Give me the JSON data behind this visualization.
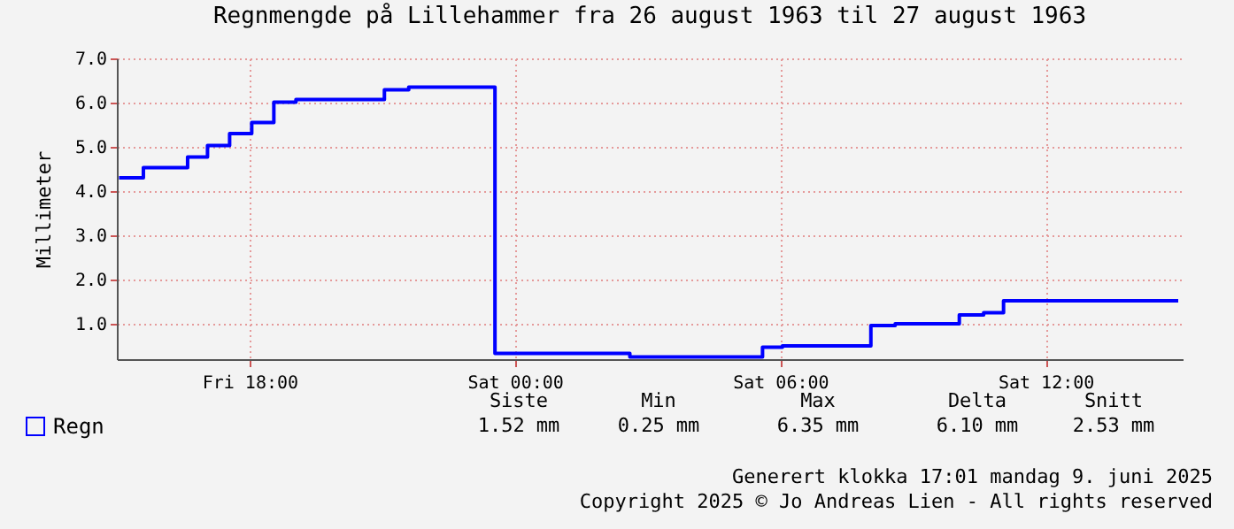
{
  "chart_data": {
    "type": "step",
    "title": "Regnmengde på Lillehammer fra 26 august 1963 til 27 august 1963",
    "ylabel": "Millimeter",
    "x": [
      "1963-08-26T15:03",
      "1963-08-26T15:36",
      "1963-08-26T16:36",
      "1963-08-26T17:03",
      "1963-08-26T17:33",
      "1963-08-26T18:03",
      "1963-08-26T18:33",
      "1963-08-26T19:03",
      "1963-08-26T21:03",
      "1963-08-26T21:36",
      "1963-08-26T23:33",
      "1963-08-27T02:36",
      "1963-08-27T05:36",
      "1963-08-27T06:03",
      "1963-08-27T08:03",
      "1963-08-27T08:36",
      "1963-08-27T10:03",
      "1963-08-27T10:36",
      "1963-08-27T11:03",
      "1963-08-27T15:00"
    ],
    "series": [
      {
        "name": "Regn",
        "color": "#0000ff",
        "values": [
          4.3,
          4.53,
          4.77,
          5.03,
          5.3,
          5.55,
          6.01,
          6.07,
          6.29,
          6.35,
          0.33,
          0.25,
          0.47,
          0.5,
          0.96,
          1.0,
          1.2,
          1.25,
          1.52,
          1.52
        ]
      }
    ],
    "xlim": [
      "1963-08-26T15:00",
      "1963-08-27T15:06"
    ],
    "xticks": [
      {
        "value": "1963-08-26T18:00",
        "label": "Fri 18:00"
      },
      {
        "value": "1963-08-27T00:00",
        "label": "Sat 00:00"
      },
      {
        "value": "1963-08-27T06:00",
        "label": "Sat 06:00"
      },
      {
        "value": "1963-08-27T12:00",
        "label": "Sat 12:00"
      }
    ],
    "ylim": [
      0.2,
      7.0
    ],
    "yticks": [
      {
        "value": 1,
        "label": "1.0"
      },
      {
        "value": 2,
        "label": "2.0"
      },
      {
        "value": 3,
        "label": "3.0"
      },
      {
        "value": 4,
        "label": "4.0"
      },
      {
        "value": 5,
        "label": "5.0"
      },
      {
        "value": 6,
        "label": "6.0"
      },
      {
        "value": 7,
        "label": "7.0"
      }
    ],
    "grid": true,
    "legend": "bottom left",
    "marker": "none",
    "line_style": "solid",
    "annotations": [
      "Siste",
      "Min",
      "Max",
      "Delta",
      "Snitt",
      "1.52 mm",
      "0.25 mm",
      "6.35 mm",
      "6.10 mm",
      "2.53 mm",
      "Generert klokka 17:01 mandag 9. juni 2025",
      "Copyright 2025 © Jo Andreas Lien - All rights reserved"
    ]
  }
}
